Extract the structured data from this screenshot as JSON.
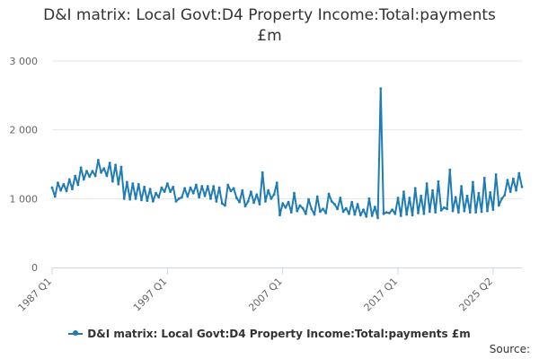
{
  "chart_data": {
    "type": "line",
    "title": "D&I matrix: Local Govt:D4 Property Income:Total:payments",
    "title_unit": "£m",
    "x_tick_labels": [
      "1987 Q1",
      "1997 Q1",
      "2007 Q1",
      "2017 Q1",
      "2025 Q2"
    ],
    "y_tick_labels": [
      "0",
      "1 000",
      "2 000",
      "3 000"
    ],
    "ylim": [
      0,
      3000
    ],
    "grid": "horizontal",
    "legend_position": "bottom",
    "series": [
      {
        "name": "D&I matrix: Local Govt:D4 Property Income:Total:payments £m",
        "color": "#1f7cb5",
        "start_period": "1987 Q1",
        "values": [
          1160,
          1030,
          1230,
          1120,
          1210,
          1110,
          1280,
          1140,
          1330,
          1200,
          1450,
          1280,
          1400,
          1320,
          1400,
          1330,
          1560,
          1380,
          1440,
          1330,
          1520,
          1250,
          1490,
          1210,
          1460,
          1000,
          1240,
          990,
          1220,
          1000,
          1210,
          980,
          1170,
          970,
          1140,
          960,
          1080,
          1020,
          1160,
          1100,
          1220,
          1100,
          1170,
          960,
          1000,
          1020,
          1150,
          1030,
          1160,
          1080,
          1200,
          1020,
          1180,
          1040,
          1180,
          1000,
          1180,
          960,
          1160,
          930,
          900,
          1200,
          1110,
          1150,
          1010,
          950,
          1120,
          890,
          960,
          1100,
          940,
          1060,
          920,
          1380,
          960,
          1120,
          1000,
          1060,
          1230,
          760,
          930,
          870,
          950,
          800,
          1080,
          820,
          900,
          860,
          780,
          990,
          850,
          770,
          1030,
          810,
          850,
          790,
          1070,
          960,
          920,
          850,
          1010,
          810,
          860,
          780,
          950,
          770,
          920,
          760,
          840,
          740,
          1000,
          750,
          880,
          720,
          2600,
          780,
          800,
          790,
          840,
          780,
          1010,
          750,
          1100,
          770,
          1010,
          760,
          1150,
          790,
          1040,
          780,
          1220,
          810,
          1120,
          800,
          1250,
          830,
          870,
          850,
          1420,
          820,
          1020,
          800,
          1180,
          820,
          1040,
          800,
          1240,
          800,
          1080,
          810,
          1300,
          820,
          1090,
          840,
          1350,
          900,
          1000,
          1050,
          1270,
          1100,
          1290,
          1120,
          1370,
          1170
        ]
      }
    ]
  },
  "source_label": "Source:"
}
